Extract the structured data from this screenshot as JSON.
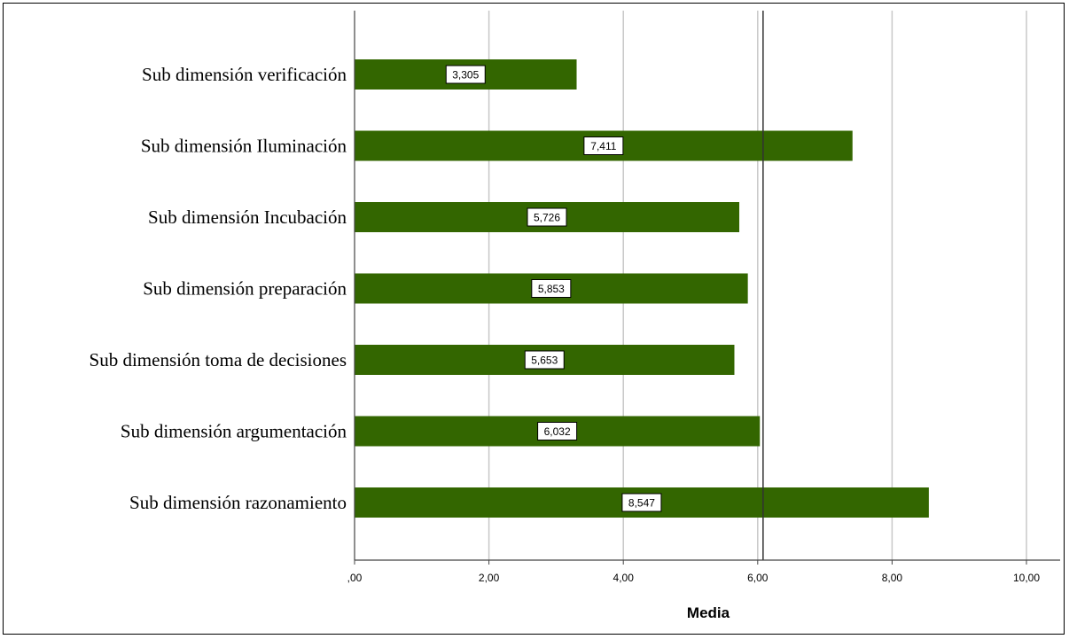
{
  "chart_data": {
    "type": "bar",
    "orientation": "horizontal",
    "categories": [
      "Sub dimensión verificación",
      "Sub dimensión Iluminación",
      "Sub dimensión Incubación",
      "Sub dimensión preparación",
      "Sub dimensión toma de decisiones",
      "Sub dimensión  argumentación",
      "Sub dimensión  razonamiento"
    ],
    "values": [
      3.305,
      7.411,
      5.726,
      5.853,
      5.653,
      6.032,
      8.547
    ],
    "value_labels": [
      "3,305",
      "7,411",
      "5,726",
      "5,853",
      "5,653",
      "6,032",
      "8,547"
    ],
    "xlabel": "Media",
    "xlim": [
      0,
      10.5
    ],
    "xticks": [
      0,
      2,
      4,
      6,
      8,
      10
    ],
    "xtick_labels": [
      ",00",
      "2,00",
      "4,00",
      "6,00",
      "8,00",
      "10,00"
    ],
    "reference_line": 6.08,
    "bar_color": "#336600",
    "grid": true
  }
}
